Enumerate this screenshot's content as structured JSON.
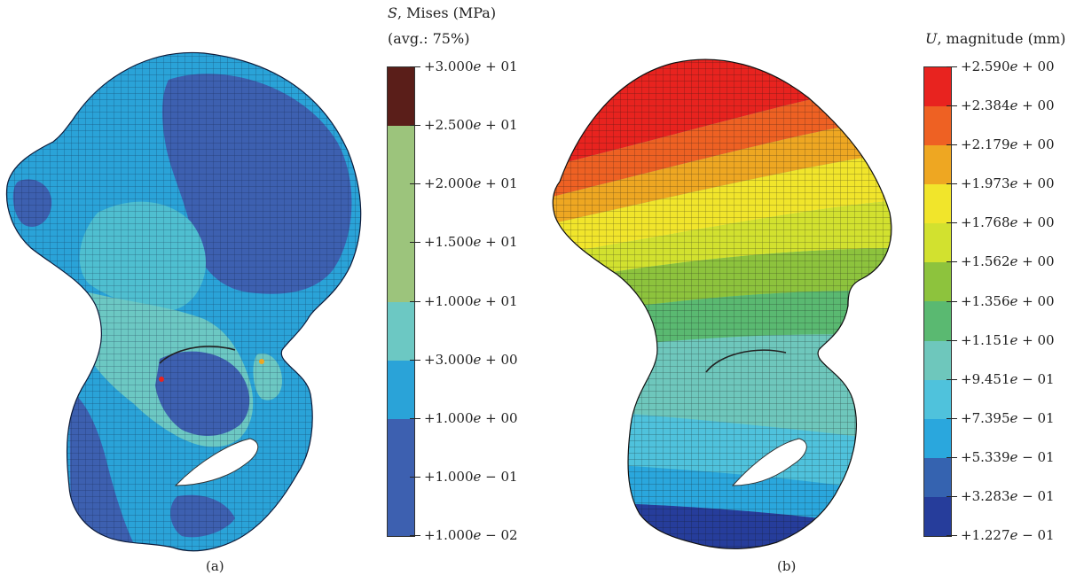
{
  "panel_a": {
    "caption": "(a)",
    "legend": {
      "title_var": "S",
      "title_rest": ", Mises (MPa)",
      "subtitle": "(avg.: 75%)",
      "bands": [
        "#5a1e19",
        "#9cc47c",
        "#9cc47c",
        "#9cc47c",
        "#6cc8c3",
        "#2aa3d8",
        "#3d60b0",
        "#3d60b0"
      ],
      "ticks": [
        {
          "m": "+3.000",
          "e": " + 01"
        },
        {
          "m": "+2.500",
          "e": " + 01"
        },
        {
          "m": "+2.000",
          "e": " + 01"
        },
        {
          "m": "+1.500",
          "e": " + 01"
        },
        {
          "m": "+1.000",
          "e": " + 01"
        },
        {
          "m": "+3.000",
          "e": " + 00"
        },
        {
          "m": "+1.000",
          "e": " + 00"
        },
        {
          "m": "+1.000",
          "e": " − 01"
        },
        {
          "m": "+1.000",
          "e": " − 02"
        }
      ]
    }
  },
  "panel_b": {
    "caption": "(b)",
    "legend": {
      "title_var": "U",
      "title_rest": ", magnitude (mm)",
      "bands": [
        "#e8231f",
        "#ee6123",
        "#eea722",
        "#f1e52b",
        "#d2e12f",
        "#8dc33d",
        "#5ab971",
        "#6ec7bc",
        "#4fc2dc",
        "#2aa7dd",
        "#3563b0",
        "#263d9b"
      ],
      "ticks": [
        {
          "m": "+2.590",
          "e": " + 00"
        },
        {
          "m": "+2.384",
          "e": " + 00"
        },
        {
          "m": "+2.179",
          "e": " + 00"
        },
        {
          "m": "+1.973",
          "e": " + 00"
        },
        {
          "m": "+1.768",
          "e": " + 00"
        },
        {
          "m": "+1.562",
          "e": " + 00"
        },
        {
          "m": "+1.356",
          "e": " + 00"
        },
        {
          "m": "+1.151",
          "e": " + 00"
        },
        {
          "m": "+9.451",
          "e": " − 01"
        },
        {
          "m": "+7.395",
          "e": " − 01"
        },
        {
          "m": "+5.339",
          "e": " − 01"
        },
        {
          "m": "+3.283",
          "e": " − 01"
        },
        {
          "m": "+1.227",
          "e": " − 01"
        }
      ]
    }
  }
}
